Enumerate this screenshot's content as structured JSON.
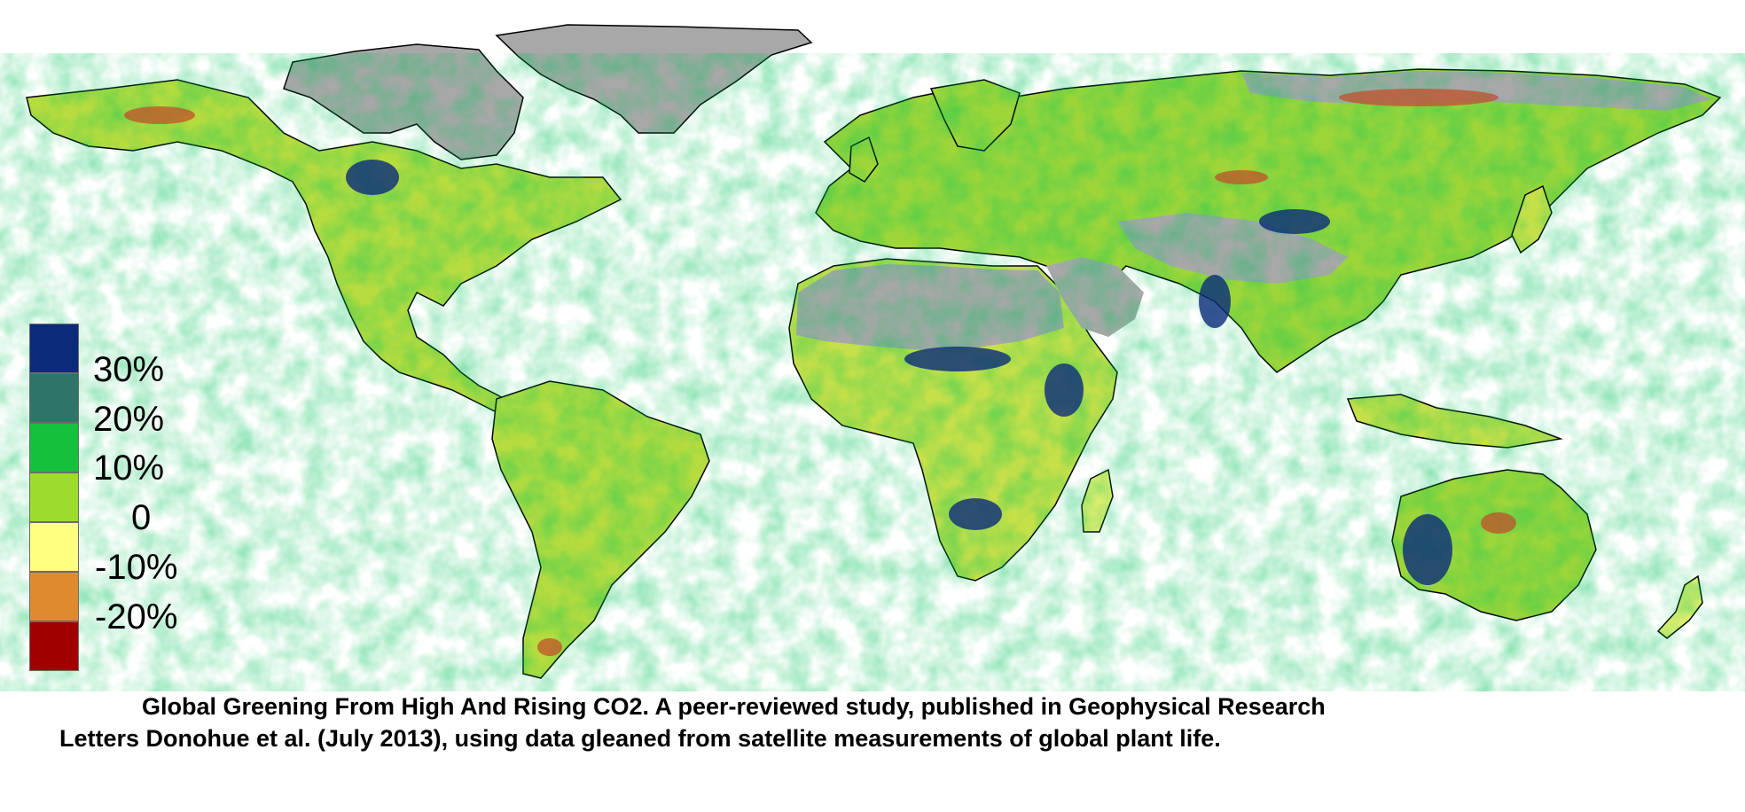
{
  "legend": {
    "ticks": [
      "30%",
      "20%",
      "10%",
      "0",
      "-10%",
      "-20%"
    ],
    "colors": [
      "#0a2a7a",
      "#2e7468",
      "#15c13c",
      "#9ddc2a",
      "#ffff80",
      "#e08a30",
      "#a00000"
    ]
  },
  "map_colors": {
    "ocean": "#ffffff",
    "no_data": "#a8a8a8",
    "coastline": "#000000"
  },
  "caption": {
    "line1": "Global Greening  From High And Rising CO2.  A peer-reviewed study, published in Geophysical Research",
    "line2": "Letters   Donohue et al. (July 2013), using data gleaned from satellite measurements of global plant life."
  }
}
